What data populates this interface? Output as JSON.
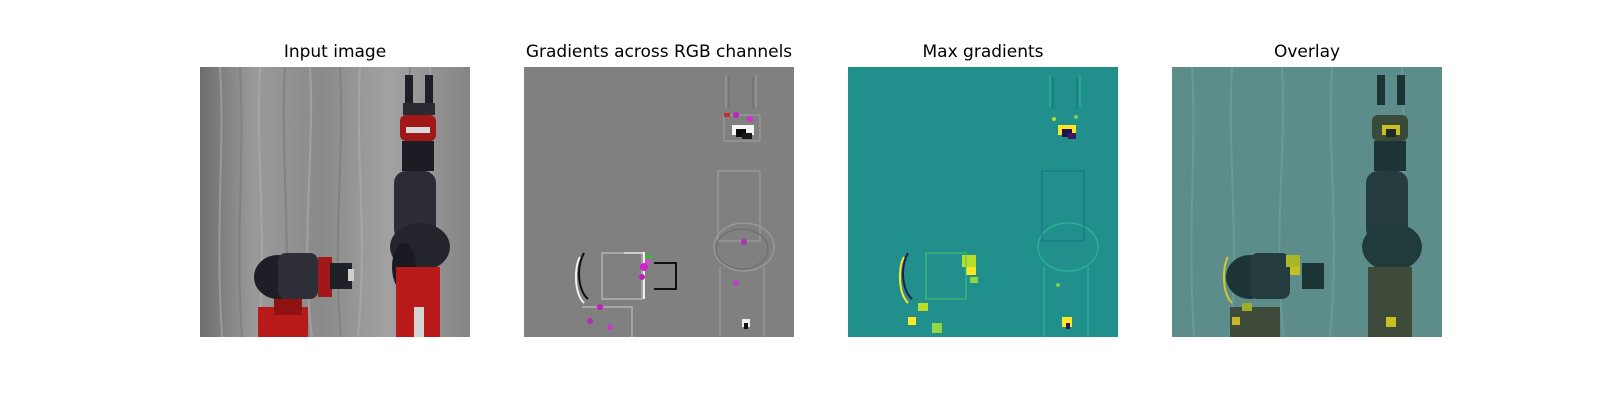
{
  "panels": [
    {
      "title": "Input image"
    },
    {
      "title": "Gradients across RGB channels"
    },
    {
      "title": "Max gradients"
    },
    {
      "title": "Overlay"
    }
  ],
  "colors": {
    "page_background": "#ffffff",
    "gradient_gray": "#808080",
    "max_gradient_teal": "#21908d",
    "highlight_yellow": "#fde725",
    "robot_red": "#b01818",
    "robot_dark": "#262630",
    "curtain_gray": "#8e8e8e"
  }
}
